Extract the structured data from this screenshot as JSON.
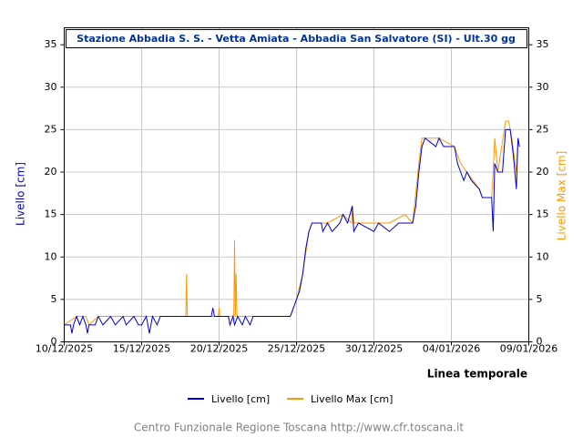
{
  "chart_data": {
    "type": "line",
    "title": "Stazione Abbadia S. S. - Vetta Amiata - Abbadia San Salvatore (SI) - Ult.30 gg",
    "xlabel": "Linea temporale",
    "ylabel": "Livello [cm]",
    "y2label": "Livello Max [cm]",
    "footer": "Centro Funzionale Regione Toscana http://www.cfr.toscana.it",
    "xlim": [
      0,
      30
    ],
    "xticks": [
      {
        "value": 0,
        "label": "10/12/2025"
      },
      {
        "value": 5,
        "label": "15/12/2025"
      },
      {
        "value": 10,
        "label": "20/12/2025"
      },
      {
        "value": 15,
        "label": "25/12/2025"
      },
      {
        "value": 20,
        "label": "30/12/2025"
      },
      {
        "value": 25,
        "label": "04/01/2026"
      },
      {
        "value": 30,
        "label": "09/01/2026"
      }
    ],
    "ylim": [
      0,
      37
    ],
    "yticks": [
      0,
      5,
      10,
      15,
      20,
      25,
      30,
      35
    ],
    "y2lim": [
      0,
      37
    ],
    "y2ticks": [
      0,
      5,
      10,
      15,
      20,
      25,
      30,
      35
    ],
    "grid": true,
    "series": [
      {
        "name": "Livello [cm]",
        "color": "#0000cc",
        "x": [
          0,
          0.4,
          0.5,
          0.6,
          0.8,
          1,
          1.2,
          1.4,
          1.5,
          1.6,
          2,
          2.2,
          2.5,
          3,
          3.3,
          3.8,
          4,
          4.5,
          4.8,
          5,
          5.3,
          5.5,
          5.7,
          6,
          6.2,
          9.5,
          9.6,
          9.7,
          10.6,
          10.7,
          10.9,
          11,
          11.2,
          11.5,
          11.7,
          12,
          12.2,
          14.6,
          14.8,
          15,
          15.2,
          15.4,
          15.6,
          15.8,
          16,
          16.6,
          16.7,
          17,
          17.3,
          17.8,
          18,
          18.3,
          18.6,
          18.7,
          19,
          20,
          20.3,
          21,
          21.6,
          22.5,
          22.7,
          22.9,
          23.1,
          23.3,
          24,
          24.2,
          24.5,
          25.2,
          25.4,
          25.6,
          25.8,
          26,
          26.3,
          26.8,
          27,
          27.6,
          27.7,
          27.8,
          28,
          28.3,
          28.5,
          28.8,
          29,
          29.2,
          29.3,
          29.4
        ],
        "values": [
          2,
          2,
          1,
          2,
          3,
          2,
          3,
          2,
          1,
          2,
          2,
          3,
          2,
          3,
          2,
          3,
          2,
          3,
          2,
          2,
          3,
          1,
          3,
          2,
          3,
          3,
          4,
          3,
          3,
          2,
          3,
          2,
          3,
          2,
          3,
          2,
          3,
          3,
          4,
          5,
          6,
          8,
          11,
          13,
          14,
          14,
          13,
          14,
          13,
          14,
          15,
          14,
          16,
          13,
          14,
          13,
          14,
          13,
          14,
          14,
          16,
          20,
          23,
          24,
          23,
          24,
          23,
          23,
          21,
          20,
          19,
          20,
          19,
          18,
          17,
          17,
          13,
          21,
          20,
          20,
          25,
          25,
          22,
          18,
          24,
          23
        ]
      },
      {
        "name": "Livello Max [cm]",
        "color": "#ff9900",
        "axis": "y2",
        "x": [
          0,
          0.8,
          1,
          1.4,
          1.6,
          2.2,
          2.5,
          3,
          3.8,
          4.5,
          5,
          5.3,
          5.5,
          5.7,
          6.2,
          7.85,
          7.9,
          7.95,
          9.95,
          10,
          10.05,
          10.95,
          11,
          11.05,
          11.1,
          11.15,
          12.2,
          14.6,
          14.8,
          15,
          15.4,
          15.8,
          16,
          16.6,
          17,
          18,
          18.55,
          18.6,
          18.7,
          19,
          20,
          21,
          22,
          22.5,
          22.9,
          23.1,
          23.3,
          24.2,
          25.2,
          25.6,
          26,
          26.8,
          27,
          27.6,
          27.7,
          27.8,
          28,
          28.5,
          28.7,
          28.9,
          29.2,
          29.3,
          29.4
        ],
        "values": [
          2,
          3,
          3,
          3,
          2,
          3,
          3,
          3,
          3,
          3,
          3,
          3,
          3,
          3,
          3,
          3,
          8,
          3,
          3,
          4,
          3,
          3,
          12,
          3,
          8,
          3,
          3,
          3,
          4,
          5,
          8,
          13,
          14,
          14,
          14,
          15,
          14,
          16,
          14,
          14,
          14,
          14,
          15,
          14,
          21,
          24,
          24,
          24,
          23,
          21,
          20,
          18,
          17,
          17,
          20,
          24,
          20,
          26,
          26,
          24,
          20,
          24,
          23
        ]
      }
    ]
  }
}
